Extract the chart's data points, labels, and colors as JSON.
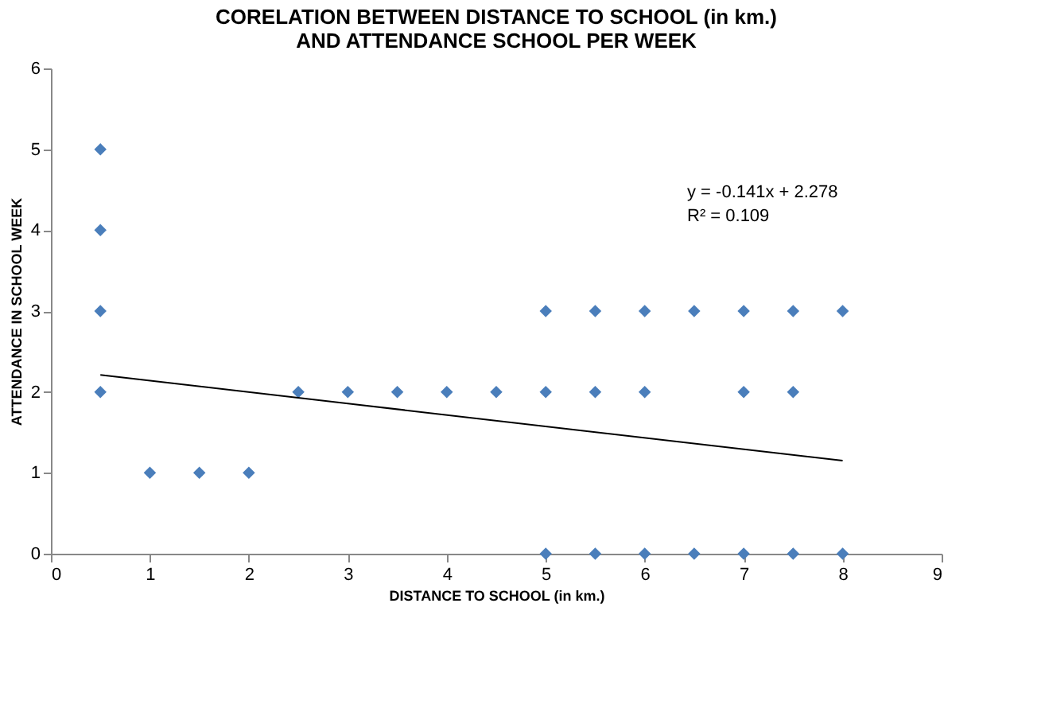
{
  "chart_data": {
    "type": "scatter",
    "title": "CORELATION BETWEEN DISTANCE TO SCHOOL (in km.) AND ATTENDANCE SCHOOL PER WEEK",
    "xlabel": "DISTANCE TO SCHOOL (in km.)",
    "ylabel": "ATTENDANCE IN SCHOOL WEEK",
    "series": [
      {
        "color": "#4a7ebb",
        "marker": "diamond",
        "x": [
          0.5,
          0.5,
          0.5,
          0.5,
          1,
          1.5,
          2,
          2.5,
          3,
          3.5,
          4,
          4.5,
          5,
          5,
          5,
          5.5,
          5.5,
          5.5,
          6,
          6,
          6,
          6.5,
          6.5,
          7,
          7,
          7,
          7.5,
          7.5,
          7.5,
          8,
          8
        ],
        "values": [
          2,
          3,
          4,
          5,
          1,
          1,
          1,
          2,
          2,
          2,
          2,
          2,
          0,
          2,
          3,
          0,
          2,
          3,
          0,
          2,
          3,
          0,
          3,
          0,
          2,
          3,
          0,
          2,
          3,
          0,
          3
        ]
      },
      {
        "type": "line",
        "color": "#000000",
        "x": [
          0.5,
          8
        ],
        "values": [
          2.21,
          1.15
        ]
      }
    ],
    "annotations": [
      "y = -0.141x + 2.278",
      "R² = 0.109"
    ],
    "xlim": [
      0,
      9
    ],
    "xticks": [
      0,
      1,
      2,
      3,
      4,
      5,
      6,
      7,
      8,
      9
    ],
    "ylim": [
      0,
      6
    ],
    "yticks": [
      0,
      1,
      2,
      3,
      4,
      5,
      6
    ],
    "grid": false
  }
}
